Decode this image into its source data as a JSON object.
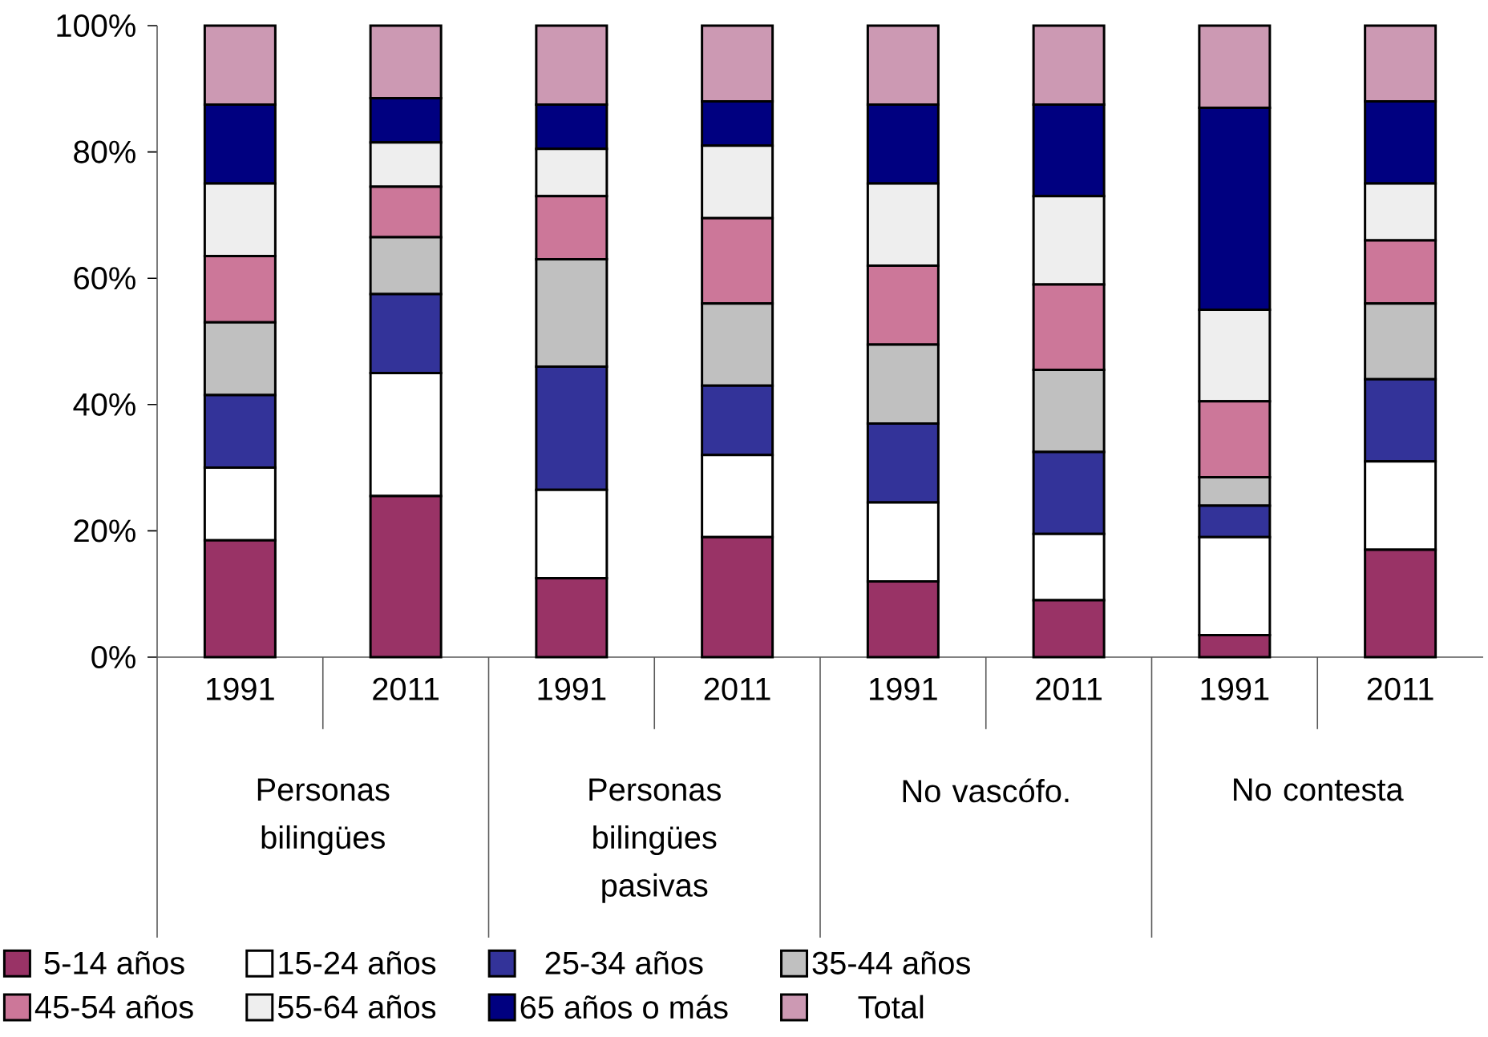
{
  "chart_data": {
    "type": "bar",
    "stacked": true,
    "categories": [
      "1991",
      "2011",
      "1991",
      "2011",
      "1991",
      "2011",
      "1991",
      "2011"
    ],
    "annotations": [
      "Personas bilingües",
      "Personas bilingües pasivas",
      "No vascófo.",
      "No contesta"
    ],
    "series": [
      {
        "name": "5-14 años",
        "color": "#993366",
        "values": [
          18.5,
          25.5,
          12.5,
          19,
          12,
          9,
          3.5,
          17
        ]
      },
      {
        "name": "15-24 años",
        "color": "#ffffff",
        "values": [
          11.5,
          19.5,
          14,
          13,
          12.5,
          10.5,
          15.5,
          14
        ]
      },
      {
        "name": "25-34 años",
        "color": "#333399",
        "values": [
          11.5,
          12.5,
          19.5,
          11,
          12.5,
          13,
          5,
          13
        ]
      },
      {
        "name": "35-44 años",
        "color": "#c0c0c0",
        "values": [
          11.5,
          9,
          17,
          13,
          12.5,
          13,
          4.5,
          12
        ]
      },
      {
        "name": "45-54 años",
        "color": "#cc7799",
        "values": [
          10.5,
          8,
          10,
          13.5,
          12.5,
          13.5,
          12,
          10
        ]
      },
      {
        "name": "55-64 años",
        "color": "#eeeeee",
        "values": [
          11.5,
          7,
          7.5,
          11.5,
          13,
          14,
          14.5,
          9
        ]
      },
      {
        "name": "65 años o más",
        "color": "#000080",
        "values": [
          12.5,
          7,
          7,
          7,
          12.5,
          14.5,
          32,
          13
        ]
      },
      {
        "name": "Total",
        "color": "#cc99b3",
        "values": [
          12.5,
          11.5,
          12.5,
          12,
          12.5,
          12.5,
          13,
          12
        ]
      }
    ],
    "ylim": [
      0,
      100
    ],
    "yticks": [
      {
        "value": 0,
        "label": "0%"
      },
      {
        "value": 20,
        "label": "20%"
      },
      {
        "value": 40,
        "label": "40%"
      },
      {
        "value": 60,
        "label": "60%"
      },
      {
        "value": 80,
        "label": "80%"
      },
      {
        "value": 100,
        "label": "100%"
      }
    ],
    "grid": false,
    "legend": "bottom"
  }
}
